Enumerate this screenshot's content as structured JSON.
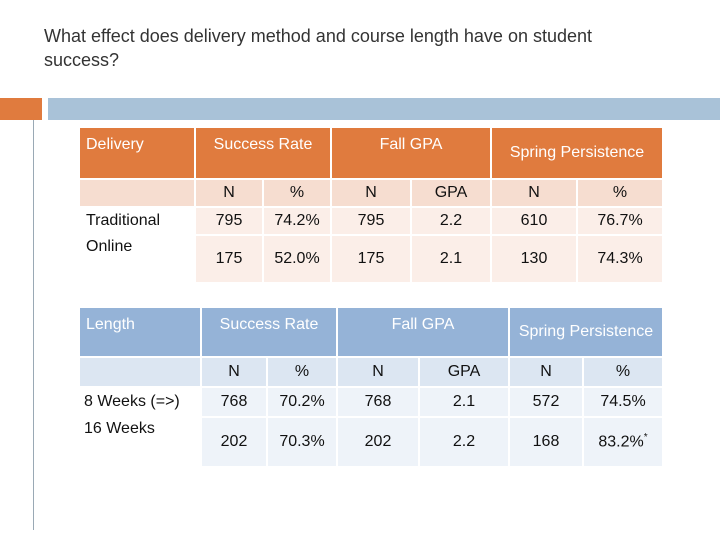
{
  "title": "What effect does delivery method and course length have on student success?",
  "delivery_table": {
    "row_header": "Delivery",
    "groups": [
      "Success Rate",
      "Fall GPA",
      "Spring Persistence"
    ],
    "subheaders": [
      "N",
      "%",
      "N",
      "GPA",
      "N",
      "%"
    ],
    "rows": [
      {
        "label": "Traditional",
        "values": [
          "795",
          "74.2%",
          "795",
          "2.2",
          "610",
          "76.7%"
        ]
      },
      {
        "label": "Online",
        "values": [
          "175",
          "52.0%",
          "175",
          "2.1",
          "130",
          "74.3%"
        ]
      }
    ]
  },
  "length_table": {
    "row_header": "Length",
    "groups": [
      "Success Rate",
      "Fall GPA",
      "Spring Persistence"
    ],
    "subheaders": [
      "N",
      "%",
      "N",
      "GPA",
      "N",
      "%"
    ],
    "rows": [
      {
        "label": "8 Weeks (=>)",
        "values": [
          "768",
          "70.2%",
          "768",
          "2.1",
          "572",
          "74.5%"
        ]
      },
      {
        "label": "16 Weeks",
        "values": [
          "202",
          "70.3%",
          "202",
          "2.2",
          "168",
          "83.2%"
        ]
      }
    ],
    "footnote_mark": "*"
  },
  "colors": {
    "accent_orange": "#E07B3E",
    "accent_blue": "#95B3D7"
  }
}
